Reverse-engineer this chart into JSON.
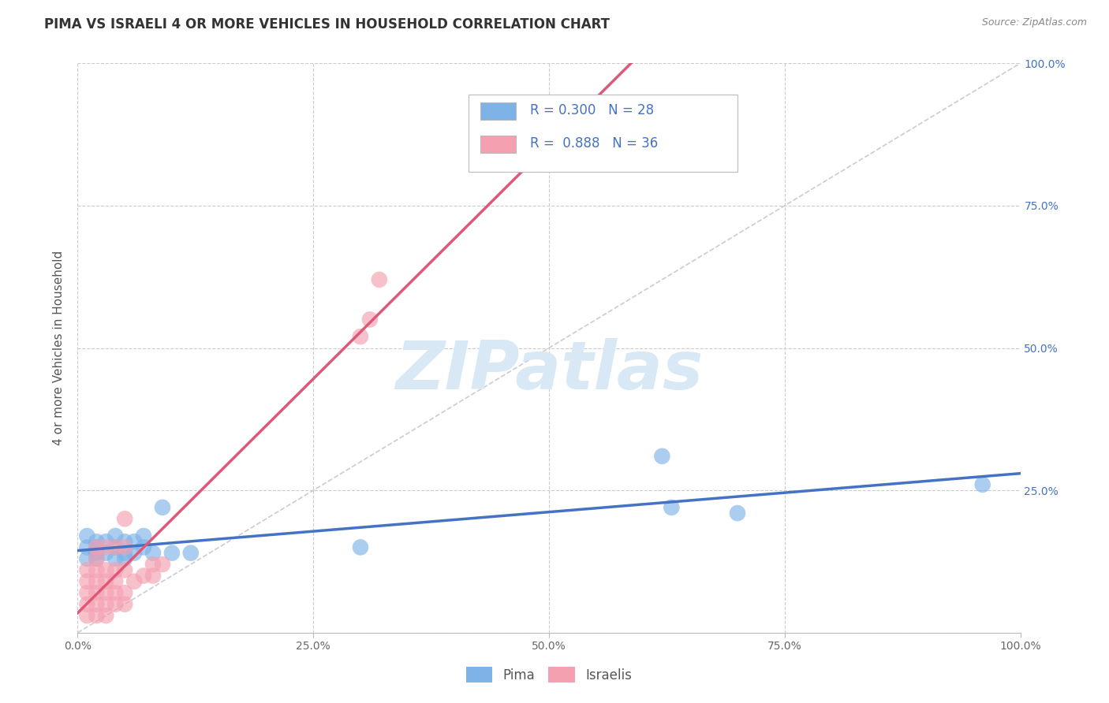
{
  "title": "PIMA VS ISRAELI 4 OR MORE VEHICLES IN HOUSEHOLD CORRELATION CHART",
  "source_text": "Source: ZipAtlas.com",
  "ylabel": "4 or more Vehicles in Household",
  "pima_R": 0.3,
  "pima_N": 28,
  "israelis_R": 0.888,
  "israelis_N": 36,
  "title_color": "#333333",
  "title_fontsize": 12,
  "source_color": "#888888",
  "axis_label_color": "#555555",
  "legend_text_color": "#4472c4",
  "pima_color": "#7eb3e8",
  "pima_color_line": "#4472c4",
  "israelis_color": "#f4a0b0",
  "israelis_color_line": "#e05878",
  "diagonal_color": "#cccccc",
  "grid_color": "#cccccc",
  "background_color": "#ffffff",
  "xlim": [
    0,
    100
  ],
  "ylim": [
    0,
    100
  ],
  "xtick_positions": [
    0,
    25,
    50,
    75,
    100
  ],
  "xtick_labels": [
    "0.0%",
    "25.0%",
    "50.0%",
    "75.0%",
    "100.0%"
  ],
  "ytick_positions": [
    25,
    50,
    75,
    100
  ],
  "ytick_labels": [
    "25.0%",
    "50.0%",
    "75.0%",
    "100.0%"
  ],
  "pima_x": [
    1,
    1,
    1,
    2,
    2,
    2,
    2,
    3,
    3,
    4,
    4,
    4,
    5,
    5,
    5,
    6,
    6,
    7,
    7,
    8,
    9,
    10,
    12,
    30,
    62,
    63,
    70,
    96
  ],
  "pima_y": [
    13,
    15,
    17,
    14,
    16,
    13,
    15,
    14,
    16,
    13,
    15,
    17,
    14,
    16,
    13,
    14,
    16,
    15,
    17,
    14,
    22,
    14,
    14,
    15,
    31,
    22,
    21,
    26
  ],
  "israelis_x": [
    1,
    1,
    1,
    1,
    1,
    2,
    2,
    2,
    2,
    2,
    2,
    2,
    3,
    3,
    3,
    3,
    3,
    3,
    4,
    4,
    4,
    4,
    4,
    5,
    5,
    5,
    5,
    5,
    6,
    7,
    8,
    8,
    9,
    30,
    31,
    32
  ],
  "israelis_y": [
    3,
    5,
    7,
    9,
    11,
    3,
    5,
    7,
    9,
    11,
    13,
    15,
    3,
    5,
    7,
    9,
    11,
    15,
    5,
    7,
    9,
    11,
    15,
    5,
    7,
    11,
    15,
    20,
    9,
    10,
    10,
    12,
    12,
    52,
    55,
    62
  ],
  "watermark_text": "ZIPatlas",
  "watermark_color": "#d8e8f5"
}
